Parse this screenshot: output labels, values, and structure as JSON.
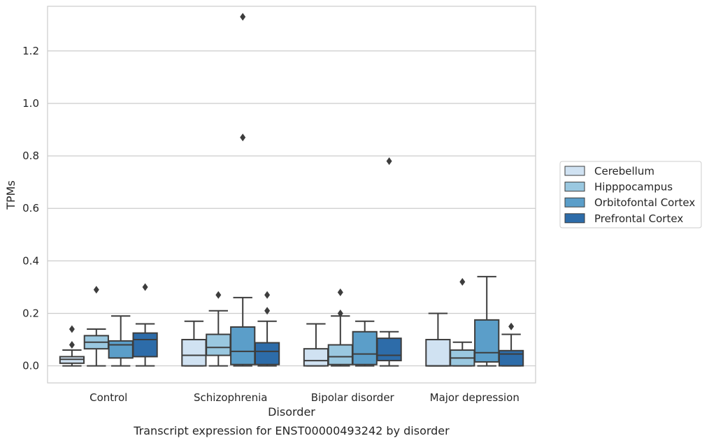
{
  "chart_data": {
    "type": "box",
    "caption": "Transcript expression for ENST00000493242 by disorder",
    "xlabel": "Disorder",
    "ylabel": "TPMs",
    "ylim": [
      -0.065,
      1.37
    ],
    "yticks": [
      "0.0",
      "0.2",
      "0.4",
      "0.6",
      "0.8",
      "1.0",
      "1.2"
    ],
    "categories": [
      "Control",
      "Schizophrenia",
      "Bipolar disorder",
      "Major depression"
    ],
    "grid": true,
    "legend_position": "right",
    "series": [
      {
        "name": "Cerebellum",
        "color": "#d0e2f2",
        "boxes": [
          {
            "whislo": 0.0,
            "q1": 0.01,
            "med": 0.025,
            "q3": 0.035,
            "whishi": 0.06,
            "fliers": [
              0.08,
              0.14
            ]
          },
          {
            "whislo": 0.0,
            "q1": 0.0,
            "med": 0.04,
            "q3": 0.1,
            "whishi": 0.17,
            "fliers": []
          },
          {
            "whislo": 0.0,
            "q1": 0.0,
            "med": 0.02,
            "q3": 0.065,
            "whishi": 0.16,
            "fliers": []
          },
          {
            "whislo": 0.0,
            "q1": 0.0,
            "med": 0.0,
            "q3": 0.1,
            "whishi": 0.2,
            "fliers": []
          }
        ]
      },
      {
        "name": "Hipppocampus",
        "color": "#9ac8e0",
        "boxes": [
          {
            "whislo": 0.0,
            "q1": 0.065,
            "med": 0.09,
            "q3": 0.115,
            "whishi": 0.14,
            "fliers": [
              0.29
            ]
          },
          {
            "whislo": 0.0,
            "q1": 0.04,
            "med": 0.07,
            "q3": 0.12,
            "whishi": 0.21,
            "fliers": [
              0.27
            ]
          },
          {
            "whislo": 0.0,
            "q1": 0.005,
            "med": 0.035,
            "q3": 0.08,
            "whishi": 0.19,
            "fliers": [
              0.2,
              0.28
            ]
          },
          {
            "whislo": 0.0,
            "q1": 0.0,
            "med": 0.03,
            "q3": 0.06,
            "whishi": 0.09,
            "fliers": [
              0.32
            ]
          }
        ]
      },
      {
        "name": "Orbitofontal Cortex",
        "color": "#5b9ec9",
        "boxes": [
          {
            "whislo": 0.0,
            "q1": 0.03,
            "med": 0.08,
            "q3": 0.095,
            "whishi": 0.19,
            "fliers": []
          },
          {
            "whislo": 0.0,
            "q1": 0.005,
            "med": 0.055,
            "q3": 0.148,
            "whishi": 0.26,
            "fliers": [
              0.87,
              1.33
            ]
          },
          {
            "whislo": 0.0,
            "q1": 0.005,
            "med": 0.045,
            "q3": 0.13,
            "whishi": 0.17,
            "fliers": []
          },
          {
            "whislo": 0.0,
            "q1": 0.015,
            "med": 0.05,
            "q3": 0.175,
            "whishi": 0.34,
            "fliers": []
          }
        ]
      },
      {
        "name": "Prefrontal Cortex",
        "color": "#2d6ca9",
        "boxes": [
          {
            "whislo": 0.0,
            "q1": 0.035,
            "med": 0.1,
            "q3": 0.125,
            "whishi": 0.16,
            "fliers": [
              0.3
            ]
          },
          {
            "whislo": 0.0,
            "q1": 0.005,
            "med": 0.055,
            "q3": 0.088,
            "whishi": 0.17,
            "fliers": [
              0.21,
              0.27
            ]
          },
          {
            "whislo": 0.0,
            "q1": 0.02,
            "med": 0.04,
            "q3": 0.105,
            "whishi": 0.13,
            "fliers": [
              0.78
            ]
          },
          {
            "whislo": 0.0,
            "q1": 0.0,
            "med": 0.045,
            "q3": 0.058,
            "whishi": 0.12,
            "fliers": [
              0.15
            ]
          }
        ]
      }
    ]
  }
}
